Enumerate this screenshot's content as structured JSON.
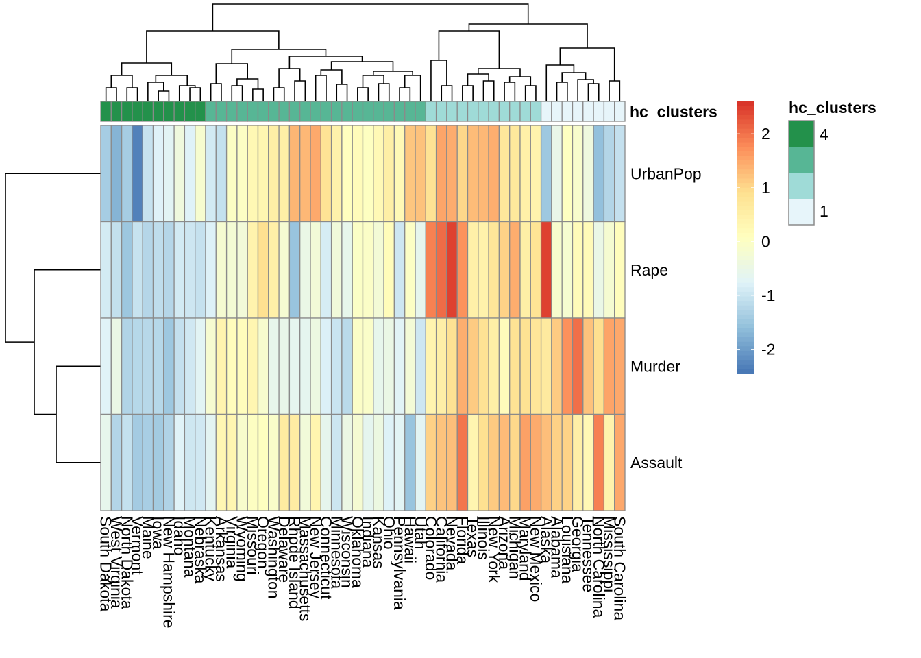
{
  "chart_data": {
    "type": "heatmap",
    "rows": [
      "UrbanPop",
      "Rape",
      "Murder",
      "Assault"
    ],
    "columns": [
      "South Dakota",
      "West Virginia",
      "North Dakota",
      "Vermont",
      "Maine",
      "Iowa",
      "New Hampshire",
      "Idaho",
      "Montana",
      "Nebraska",
      "Kentucky",
      "Arkansas",
      "Virginia",
      "Wyoming",
      "Missouri",
      "Oregon",
      "Washington",
      "Delaware",
      "Rhode Island",
      "Massachusetts",
      "New Jersey",
      "Connecticut",
      "Minnesota",
      "Wisconsin",
      "Oklahoma",
      "Indiana",
      "Kansas",
      "Ohio",
      "Pennsylvania",
      "Hawaii",
      "Utah",
      "Colorado",
      "California",
      "Nevada",
      "Florida",
      "Texas",
      "Illinois",
      "New York",
      "Arizona",
      "Michigan",
      "Maryland",
      "New Mexico",
      "Alaska",
      "Alabama",
      "Louisiana",
      "Georgia",
      "Tennessee",
      "North Carolina",
      "Mississippi",
      "South Carolina"
    ],
    "values": [
      [
        -1.38,
        -1.73,
        -1.38,
        -2.31,
        -1.04,
        -0.78,
        -0.71,
        -0.37,
        -0.78,
        -0.16,
        -0.92,
        -1.06,
        0.0,
        0.0,
        0.27,
        0.32,
        0.52,
        0.52,
        1.34,
        1.32,
        1.47,
        0.83,
        0.44,
        0.08,
        0.17,
        0.05,
        0.24,
        0.52,
        0.24,
        1.18,
        1.22,
        0.84,
        1.51,
        1.44,
        1.01,
        1.28,
        1.32,
        1.42,
        0.72,
        0.71,
        0.49,
        0.39,
        -1.47,
        -0.53,
        0.05,
        -0.11,
        -0.39,
        -1.59,
        -1.25,
        -1.07
      ],
      [
        -0.9,
        -1.08,
        -1.48,
        -1.03,
        -1.23,
        -1.12,
        -1.23,
        -0.92,
        -0.97,
        -1.05,
        -0.8,
        -0.19,
        -0.24,
        -0.29,
        0.39,
        0.89,
        0.49,
        -0.21,
        -1.52,
        -0.5,
        -0.28,
        -0.87,
        -0.33,
        -0.57,
        -0.03,
        -0.04,
        -0.26,
        0.17,
        -0.97,
        -0.02,
        -0.6,
        1.87,
        2.06,
        2.45,
        1.71,
        0.49,
        0.43,
        0.75,
        1.06,
        1.43,
        0.52,
        0.82,
        2.45,
        -0.13,
        -0.17,
        0.19,
        0.2,
        -0.5,
        -0.19,
        0.12
      ],
      [
        -0.75,
        -0.49,
        -1.27,
        -1.21,
        -1.2,
        -1.21,
        -1.47,
        -1.07,
        -0.94,
        -0.71,
        -0.18,
        0.37,
        0.12,
        0.12,
        0.33,
        -0.15,
        -0.57,
        -0.54,
        -0.63,
        -0.64,
        -0.43,
        -0.81,
        -1.01,
        -1.17,
        -0.04,
        -0.07,
        -0.59,
        -0.49,
        -0.74,
        -0.26,
        -0.97,
        0.37,
        0.5,
        0.86,
        1.42,
        1.13,
        0.85,
        0.52,
        0.15,
        0.84,
        0.87,
        0.75,
        0.64,
        1.13,
        1.72,
        2.03,
        1.22,
        0.91,
        1.53,
        1.48
      ],
      [
        -0.59,
        -1.25,
        -1.06,
        -1.41,
        -1.36,
        -1.42,
        -1.28,
        -0.77,
        -0.96,
        -0.94,
        -0.68,
        0.29,
        0.33,
        -0.12,
        0.03,
        0.06,
        -0.08,
        0.62,
        0.58,
        -0.31,
        0.36,
        -0.61,
        -0.98,
        -0.47,
        -0.21,
        -0.64,
        -0.43,
        -0.79,
        -0.72,
        -1.52,
        -0.69,
        1.07,
        1.21,
        1.25,
        1.97,
        0.34,
        0.89,
        1.14,
        1.29,
        0.99,
        1.56,
        1.45,
        1.26,
        1.07,
        1.05,
        0.5,
        0.26,
        1.88,
        0.4,
        1.48
      ]
    ],
    "column_annotation": {
      "title": "hc_clusters",
      "values": [
        4,
        4,
        4,
        4,
        4,
        4,
        4,
        4,
        4,
        4,
        3,
        3,
        3,
        3,
        3,
        3,
        3,
        3,
        3,
        3,
        3,
        3,
        3,
        3,
        3,
        3,
        3,
        3,
        3,
        3,
        3,
        2,
        2,
        2,
        2,
        2,
        2,
        2,
        2,
        2,
        2,
        2,
        1,
        1,
        1,
        1,
        1,
        1,
        1,
        1
      ],
      "legend_labels": [
        "4",
        "1"
      ],
      "colors": {
        "1": "#E7F5FA",
        "2": "#9FDBD7",
        "3": "#57B695",
        "4": "#23914B"
      }
    },
    "color_scale": {
      "stops": [
        "#4575B4",
        "#91BFDB",
        "#E0F3F8",
        "#FFFFBF",
        "#FEE090",
        "#FC8D59",
        "#D73027"
      ],
      "min": -2.45,
      "max": 2.6,
      "ticks": [
        -2,
        -1,
        0,
        1,
        2
      ]
    },
    "row_dendrogram": {
      "merges": [
        [
          2,
          3,
          0.45
        ],
        [
          1,
          "a",
          0.78
        ],
        [
          0,
          "b",
          0.93
        ]
      ]
    },
    "column_dendrogram": {
      "merges": "hierarchical"
    }
  }
}
